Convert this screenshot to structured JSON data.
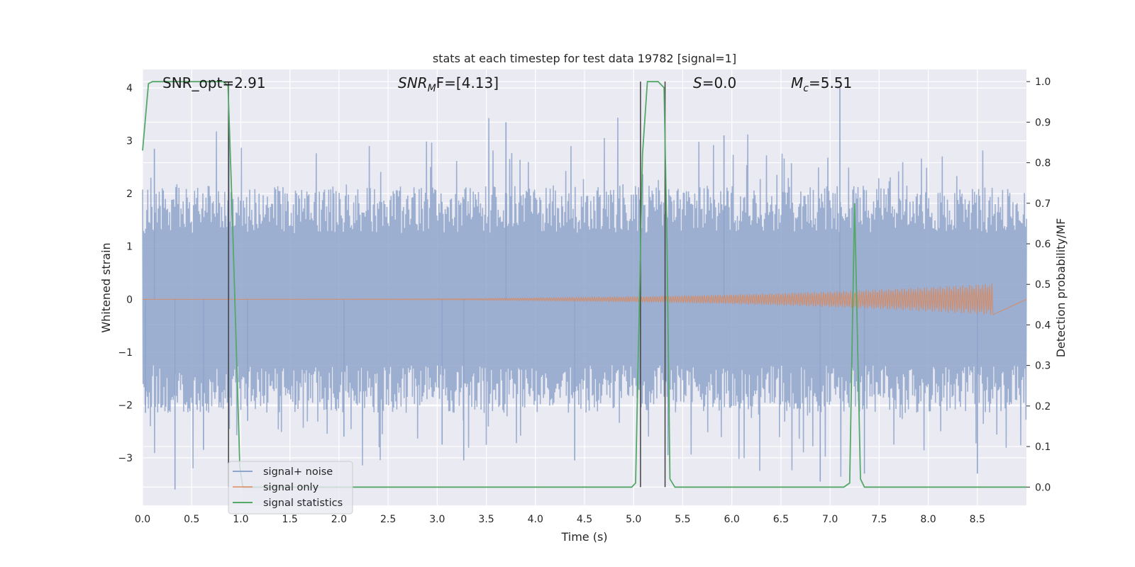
{
  "chart_data": {
    "type": "line",
    "title": "stats at each timestep for test data 19782 [signal=1]",
    "xlabel": "Time (s)",
    "ylabel_left": "Whitened strain",
    "ylabel_right": "Detection probability/MF",
    "xlim": [
      0,
      9.0
    ],
    "ylim_left": [
      -3.9,
      4.35
    ],
    "ylim_right": [
      -0.045,
      1.03
    ],
    "x_ticks": [
      "0.0",
      "0.5",
      "1.0",
      "1.5",
      "2.0",
      "2.5",
      "3.0",
      "3.5",
      "4.0",
      "4.5",
      "5.0",
      "5.5",
      "6.0",
      "6.5",
      "7.0",
      "7.5",
      "8.0",
      "8.5"
    ],
    "y_ticks_left": [
      "4",
      "3",
      "2",
      "1",
      "0",
      "−1",
      "−2",
      "−3"
    ],
    "y_ticks_right": [
      "1.0",
      "0.9",
      "0.8",
      "0.7",
      "0.6",
      "0.5",
      "0.4",
      "0.3",
      "0.2",
      "0.1",
      "0.0"
    ],
    "grid": true,
    "legend_placement": "lower-left",
    "annotations": {
      "snr_opt": "SNR_opt=2.91",
      "snr_mf_base": "SNR",
      "snr_mf_sub": "M",
      "snr_mf_rest": "F=[4.13]",
      "s_var": "S",
      "s_rest": "=0.0",
      "mc_var": "M",
      "mc_sub": "c",
      "mc_rest": "=5.51"
    },
    "series": [
      {
        "name": "signal+ noise",
        "axis": "left",
        "color": "#8fa5cb",
        "envelope": {
          "description_values": "noise band, typical |strain| ~1.3-2.7",
          "peaks": [
            {
              "x": 0.03,
              "y": -2.15
            },
            {
              "x": 0.12,
              "y": 2.85
            },
            {
              "x": 0.33,
              "y": -3.6
            },
            {
              "x": 0.62,
              "y": -2.85
            },
            {
              "x": 0.88,
              "y": 3.5
            },
            {
              "x": 1.07,
              "y": -2.3
            },
            {
              "x": 2.05,
              "y": -2.6
            },
            {
              "x": 3.05,
              "y": -2.75
            },
            {
              "x": 3.27,
              "y": -3.05
            },
            {
              "x": 3.7,
              "y": 3.35
            },
            {
              "x": 4.4,
              "y": -3.05
            },
            {
              "x": 5.35,
              "y": -2.95
            },
            {
              "x": 5.92,
              "y": 3.1
            },
            {
              "x": 6.9,
              "y": -3.45
            },
            {
              "x": 7.1,
              "y": 4.0
            },
            {
              "x": 7.35,
              "y": -3.3
            },
            {
              "x": 8.5,
              "y": -3.3
            }
          ]
        }
      },
      {
        "name": "signal only",
        "axis": "left",
        "color": "#dd8452",
        "chirp": {
          "x_start": 0.0,
          "x_end": 8.66,
          "amp_start": 0.0,
          "amp_end": 0.3
        }
      },
      {
        "name": "signal statistics",
        "axis": "right",
        "color": "#55a868",
        "points": [
          [
            0.0,
            0.83
          ],
          [
            0.06,
            0.995
          ],
          [
            0.1,
            1.0
          ],
          [
            0.82,
            1.0
          ],
          [
            0.87,
            0.99
          ],
          [
            0.91,
            0.7
          ],
          [
            0.99,
            0.05
          ],
          [
            1.02,
            0.0
          ],
          [
            4.98,
            0.0
          ],
          [
            5.02,
            0.01
          ],
          [
            5.09,
            0.82
          ],
          [
            5.14,
            1.0
          ],
          [
            5.25,
            1.0
          ],
          [
            5.31,
            0.985
          ],
          [
            5.34,
            0.6
          ],
          [
            5.37,
            0.02
          ],
          [
            5.42,
            0.0
          ],
          [
            7.14,
            0.0
          ],
          [
            7.2,
            0.01
          ],
          [
            7.25,
            0.7
          ],
          [
            7.31,
            0.02
          ],
          [
            7.35,
            0.0
          ],
          [
            9.0,
            0.0
          ]
        ]
      }
    ],
    "vertical_markers": {
      "color": "#404040",
      "x": [
        0.875,
        5.07,
        5.32
      ],
      "y_top": 1.0,
      "y_bottom": 0.0
    }
  },
  "legend": {
    "entries": [
      "signal+ noise",
      "signal only",
      "signal statistics"
    ]
  },
  "colors": {
    "plot_background": "#eaeaf2",
    "grid": "#ffffff"
  }
}
